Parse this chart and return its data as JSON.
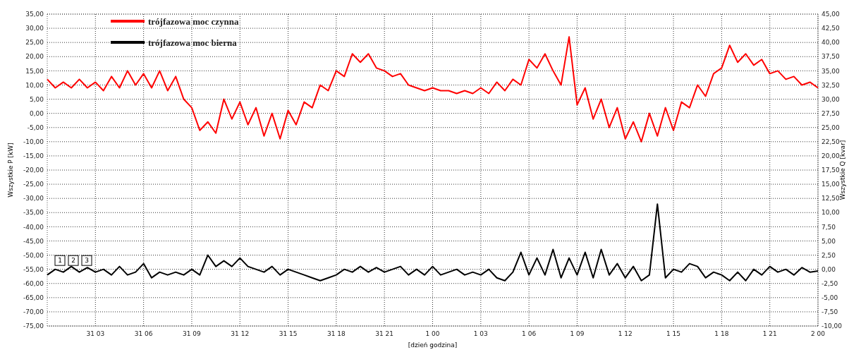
{
  "chart_data": {
    "type": "line",
    "xlabel": "[dzień godzina]",
    "ylabel": "Wszystkie P [kW]",
    "y2label": "Wszystkie Q [kvar]",
    "categories": [
      null,
      null,
      null,
      null,
      null,
      null,
      "31 03",
      null,
      null,
      null,
      null,
      null,
      "31 06",
      null,
      null,
      null,
      null,
      null,
      "31 09",
      null,
      null,
      null,
      null,
      null,
      "31 12",
      null,
      null,
      null,
      null,
      null,
      "31 15",
      null,
      null,
      null,
      null,
      null,
      "31 18",
      null,
      null,
      null,
      null,
      null,
      "31 21",
      null,
      null,
      null,
      null,
      null,
      "1 00",
      null,
      null,
      null,
      null,
      null,
      "1 03",
      null,
      null,
      null,
      null,
      null,
      "1 06",
      null,
      null,
      null,
      null,
      null,
      "1 09",
      null,
      null,
      null,
      null,
      null,
      "1 12",
      null,
      null,
      null,
      null,
      null,
      "1 15",
      null,
      null,
      null,
      null,
      null,
      "1 18",
      null,
      null,
      null,
      null,
      null,
      "1 21",
      null,
      null,
      null,
      null,
      null,
      "2 00"
    ],
    "series": [
      {
        "name": "trójfazowa moc czynna",
        "color": "#ff0000",
        "values": [
          12,
          9,
          11,
          9,
          12,
          9,
          11,
          8,
          13,
          9,
          15,
          10,
          14,
          9,
          15,
          8,
          13,
          5,
          2,
          -6,
          -3,
          -7,
          5,
          -2,
          4,
          -4,
          2,
          -8,
          0,
          -9,
          1,
          -4,
          4,
          2,
          10,
          8,
          15,
          13,
          21,
          18,
          21,
          16,
          15,
          13,
          14,
          10,
          9,
          8,
          9,
          8,
          8,
          7,
          8,
          7,
          9,
          7,
          11,
          8,
          12,
          10,
          19,
          16,
          21,
          15,
          10,
          27,
          3,
          9,
          -2,
          5,
          -5,
          2,
          -9,
          -3,
          -10,
          0,
          -8,
          2,
          -6,
          4,
          2,
          10,
          6,
          14,
          16,
          24,
          18,
          21,
          17,
          19,
          14,
          15,
          12,
          13,
          10,
          11,
          9
        ]
      },
      {
        "name": "trójfazowa moc bierna",
        "color": "#000000",
        "axis": "y2",
        "values": [
          -1,
          0,
          -0.5,
          0.5,
          -0.5,
          0.3,
          -0.5,
          0,
          -1,
          0.5,
          -1,
          -0.5,
          1,
          -1.5,
          -0.5,
          -1,
          -0.5,
          -1,
          0,
          -1,
          2.5,
          0.5,
          1.5,
          0.5,
          2,
          0.5,
          0,
          -0.5,
          0.5,
          -1,
          0,
          -0.5,
          -1,
          -1.5,
          -2,
          -1.5,
          -1,
          0,
          -0.5,
          0.5,
          -0.5,
          0.3,
          -0.5,
          0,
          0.5,
          -1,
          0,
          -1,
          0.5,
          -1,
          -0.5,
          0,
          -1,
          -0.5,
          -1,
          0,
          -1.5,
          -2,
          -0.5,
          3,
          -1,
          2,
          -1,
          3.5,
          -1.5,
          2,
          -1,
          3,
          -1.5,
          3.5,
          -1,
          1,
          -1.5,
          0.5,
          -2,
          -1,
          11.5,
          -1.5,
          0,
          -0.5,
          1,
          0.5,
          -1.5,
          -0.5,
          -1,
          -2,
          -0.5,
          -2,
          0,
          -1,
          0.5,
          -0.5,
          0,
          -1,
          0.3,
          -0.5,
          -0.3
        ]
      }
    ],
    "ylim": [
      -75,
      35
    ],
    "yticks": [
      {
        "value": -75,
        "label": "-75,00"
      },
      {
        "value": -70,
        "label": "-70,00"
      },
      {
        "value": -65,
        "label": "-65,00"
      },
      {
        "value": -60,
        "label": "-60,00"
      },
      {
        "value": -55,
        "label": "-55,00"
      },
      {
        "value": -50,
        "label": "-50,00"
      },
      {
        "value": -45,
        "label": "-45,00"
      },
      {
        "value": -40,
        "label": "-40,00"
      },
      {
        "value": -35,
        "label": "-35,00"
      },
      {
        "value": -30,
        "label": "-30,00"
      },
      {
        "value": -25,
        "label": "-25,00"
      },
      {
        "value": -20,
        "label": "-20,00"
      },
      {
        "value": -15,
        "label": "-15,00"
      },
      {
        "value": -10,
        "label": "-10,00"
      },
      {
        "value": -5,
        "label": "-5,00"
      },
      {
        "value": 0,
        "label": "0,00"
      },
      {
        "value": 5,
        "label": "5,00"
      },
      {
        "value": 10,
        "label": "10,00"
      },
      {
        "value": 15,
        "label": "15,00"
      },
      {
        "value": 20,
        "label": "20,00"
      },
      {
        "value": 25,
        "label": "25,00"
      },
      {
        "value": 30,
        "label": "30,00"
      },
      {
        "value": 35,
        "label": "35,00"
      }
    ],
    "y2lim": [
      -10,
      45
    ],
    "y2ticks": [
      {
        "value": -10,
        "label": "-10,00"
      },
      {
        "value": -7.5,
        "label": "-7,50"
      },
      {
        "value": -5,
        "label": "-5,00"
      },
      {
        "value": -2.5,
        "label": "-2,50"
      },
      {
        "value": 0,
        "label": "0,00"
      },
      {
        "value": 2.5,
        "label": "2,50"
      },
      {
        "value": 5,
        "label": "5,00"
      },
      {
        "value": 7.5,
        "label": "7,50"
      },
      {
        "value": 10,
        "label": "10,00"
      },
      {
        "value": 12.5,
        "label": "12,50"
      },
      {
        "value": 15,
        "label": "15,00"
      },
      {
        "value": 17.5,
        "label": "17,50"
      },
      {
        "value": 20,
        "label": "20,00"
      },
      {
        "value": 22.5,
        "label": "22,50"
      },
      {
        "value": 25,
        "label": "25,00"
      },
      {
        "value": 27.5,
        "label": "27,50"
      },
      {
        "value": 30,
        "label": "30,00"
      },
      {
        "value": 32.5,
        "label": "32,50"
      },
      {
        "value": 35,
        "label": "35,00"
      },
      {
        "value": 37.5,
        "label": "37,50"
      },
      {
        "value": 40,
        "label": "40,00"
      },
      {
        "value": 42.5,
        "label": "42,50"
      },
      {
        "value": 45,
        "label": "45,00"
      }
    ],
    "annotations": [
      "1",
      "2",
      "3"
    ],
    "grid": true,
    "legend": "top left",
    "line_style": "solid",
    "marker": "none"
  }
}
